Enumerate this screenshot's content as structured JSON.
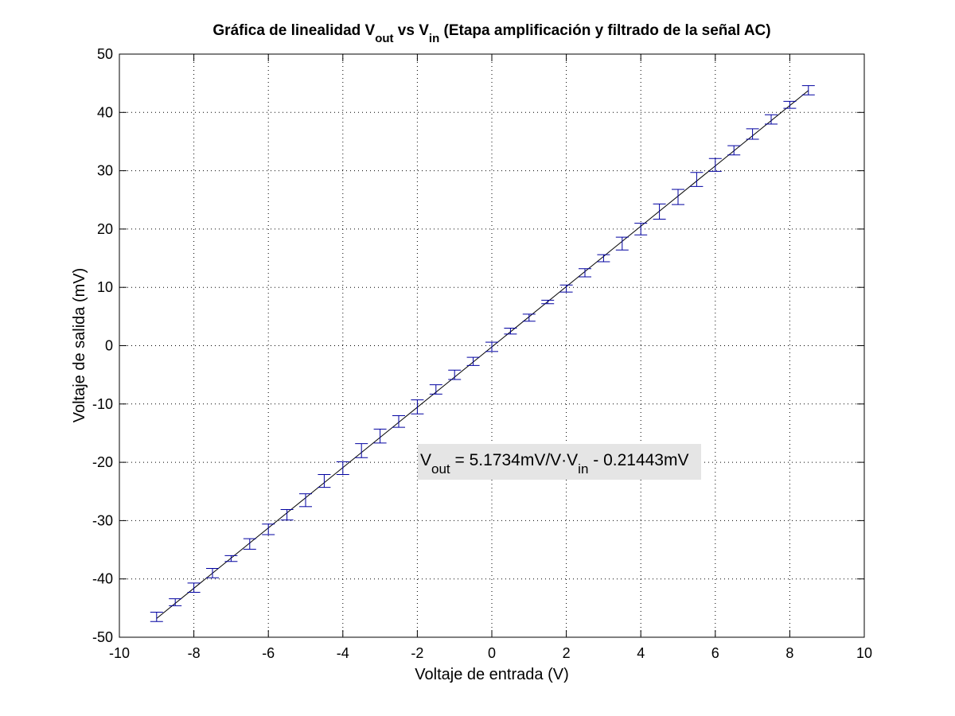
{
  "chart_data": {
    "type": "scatter",
    "title": {
      "prefix": "Gráfica de linealidad V",
      "sub1": "out",
      "mid": " vs V",
      "sub2": "in",
      "suffix": " (Etapa amplificación y filtrado de la señal AC)"
    },
    "xlabel": "Voltaje de entrada (V)",
    "ylabel": "Voltaje de salida (mV)",
    "xlim": [
      -10,
      10
    ],
    "ylim": [
      -50,
      50
    ],
    "xticks": [
      -10,
      -8,
      -6,
      -4,
      -2,
      0,
      2,
      4,
      6,
      8,
      10
    ],
    "yticks": [
      -50,
      -40,
      -30,
      -20,
      -10,
      0,
      10,
      20,
      30,
      40,
      50
    ],
    "grid": true,
    "series": [
      {
        "kind": "errorbar",
        "color": "#0000a0",
        "x": [
          -9,
          -8.5,
          -8,
          -7.5,
          -7,
          -6.5,
          -6,
          -5.5,
          -5,
          -4.5,
          -4,
          -3.5,
          -3,
          -2.5,
          -2,
          -1.5,
          -1,
          -0.5,
          0,
          0.5,
          1,
          1.5,
          2,
          2.5,
          3,
          3.5,
          4,
          4.5,
          5,
          5.5,
          6,
          6.5,
          7,
          7.5,
          8,
          8.5
        ],
        "y": [
          -46.5,
          -44,
          -41.5,
          -39,
          -36.5,
          -34,
          -31.5,
          -29,
          -26.5,
          -23.2,
          -21,
          -18,
          -15.5,
          -13,
          -10.5,
          -7.5,
          -5,
          -2.7,
          -0.2,
          2.5,
          4.8,
          7.5,
          9.8,
          12.5,
          15,
          17.5,
          20,
          23,
          25.5,
          28.5,
          31,
          33.5,
          36.3,
          38.8,
          41.3,
          43.8
        ],
        "err": [
          0.8,
          0.6,
          0.8,
          0.8,
          0.5,
          0.9,
          0.9,
          0.9,
          1.1,
          1.1,
          1.1,
          1.2,
          1.2,
          1.0,
          1.2,
          0.8,
          0.8,
          0.7,
          0.8,
          0.5,
          0.6,
          0.3,
          0.6,
          0.7,
          0.6,
          1.1,
          1.0,
          1.3,
          1.3,
          1.2,
          1.1,
          0.8,
          0.9,
          0.8,
          0.6,
          0.8
        ]
      },
      {
        "kind": "fit-line",
        "color": "#000000",
        "slope": 5.1734,
        "intercept": -0.21443
      }
    ],
    "annotation": {
      "v": "V",
      "sub1": "out",
      "mid": " = 5.1734mV/V·V",
      "sub2": "in",
      "end": " - 0.21443mV",
      "background": "#e5e5e5"
    }
  }
}
